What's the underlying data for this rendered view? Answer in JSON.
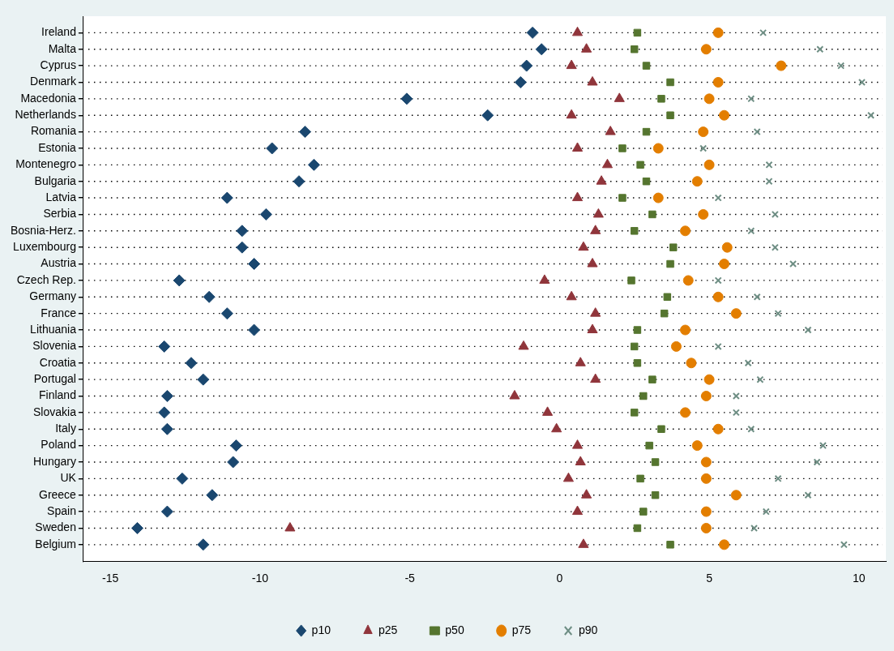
{
  "chart_data": {
    "type": "scatter",
    "orientation": "horizontal",
    "grid": "y",
    "legend": "bottom",
    "categories": [
      "Ireland",
      "Malta",
      "Cyprus",
      "Denmark",
      "Macedonia",
      "Netherlands",
      "Romania",
      "Estonia",
      "Montenegro",
      "Bulgaria",
      "Latvia",
      "Serbia",
      "Bosnia-Herz.",
      "Luxembourg",
      "Austria",
      "Czech Rep.",
      "Germany",
      "France",
      "Lithuania",
      "Slovenia",
      "Croatia",
      "Portugal",
      "Finland",
      "Slovakia",
      "Italy",
      "Poland",
      "Hungary",
      "UK",
      "Greece",
      "Spain",
      "Sweden",
      "Belgium"
    ],
    "xlim": [
      -15.9,
      10.9
    ],
    "xticks": [
      -15,
      -10,
      -5,
      0,
      5,
      10
    ],
    "series": [
      {
        "name": "p10",
        "color": "#1a476f",
        "marker": "diamond",
        "values": [
          -0.9,
          -0.6,
          -1.1,
          -1.3,
          -5.1,
          -2.4,
          -8.5,
          -9.6,
          -8.2,
          -8.7,
          -11.1,
          -9.8,
          -10.6,
          -10.6,
          -10.2,
          -12.7,
          -11.7,
          -11.1,
          -10.2,
          -13.2,
          -12.3,
          -11.9,
          -13.1,
          -13.2,
          -13.1,
          -10.8,
          -10.9,
          -12.6,
          -11.6,
          -13.1,
          -14.1,
          -11.9
        ]
      },
      {
        "name": "p25",
        "color": "#90353b",
        "marker": "triangle",
        "values": [
          0.6,
          0.9,
          0.4,
          1.1,
          2.0,
          0.4,
          1.7,
          0.6,
          1.6,
          1.4,
          0.6,
          1.3,
          1.2,
          0.8,
          1.1,
          -0.5,
          0.4,
          1.2,
          1.1,
          -1.2,
          0.7,
          1.2,
          -1.5,
          -0.4,
          -0.1,
          0.6,
          0.7,
          0.3,
          0.9,
          0.6,
          -9.0,
          0.8
        ]
      },
      {
        "name": "p50",
        "color": "#55752f",
        "marker": "square",
        "values": [
          2.6,
          2.5,
          2.9,
          3.7,
          3.4,
          3.7,
          2.9,
          2.1,
          2.7,
          2.9,
          2.1,
          3.1,
          2.5,
          3.8,
          3.7,
          2.4,
          3.6,
          3.5,
          2.6,
          2.5,
          2.6,
          3.1,
          2.8,
          2.5,
          3.4,
          3.0,
          3.2,
          2.7,
          3.2,
          2.8,
          2.6,
          3.7
        ]
      },
      {
        "name": "p75",
        "color": "#e37e00",
        "marker": "circle",
        "values": [
          5.3,
          4.9,
          7.4,
          5.3,
          5.0,
          5.5,
          4.8,
          3.3,
          5.0,
          4.6,
          3.3,
          4.8,
          4.2,
          5.6,
          5.5,
          4.3,
          5.3,
          5.9,
          4.2,
          3.9,
          4.4,
          5.0,
          4.9,
          4.2,
          5.3,
          4.6,
          4.9,
          4.9,
          5.9,
          4.9,
          4.9,
          5.5
        ]
      },
      {
        "name": "p90",
        "color": "#6e8e84",
        "marker": "cross",
        "values": [
          6.8,
          8.7,
          9.4,
          10.1,
          6.4,
          10.4,
          6.6,
          4.8,
          7.0,
          7.0,
          5.3,
          7.2,
          6.4,
          7.2,
          7.8,
          5.3,
          6.6,
          7.3,
          8.3,
          5.3,
          6.3,
          6.7,
          5.9,
          5.9,
          6.4,
          8.8,
          8.6,
          7.3,
          8.3,
          6.9,
          6.5,
          9.5
        ]
      }
    ]
  }
}
